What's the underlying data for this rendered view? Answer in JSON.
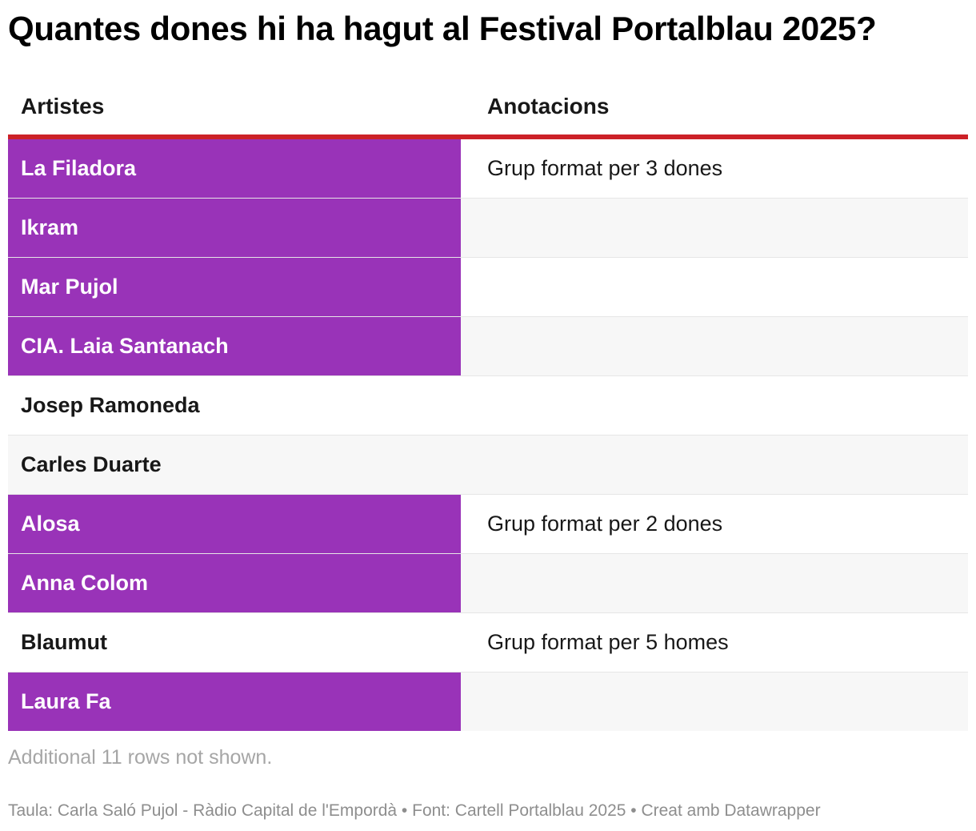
{
  "chart_data": {
    "type": "table",
    "title": "Quantes dones hi ha hagut al Festival Portalblau 2025?",
    "columns": [
      "Artistes",
      "Anotacions"
    ],
    "highlight_color": "#9933b8",
    "header_rule_color": "#cc2127",
    "rows": [
      {
        "artist": "La Filadora",
        "note": "Grup format per 3 dones",
        "highlight": true
      },
      {
        "artist": "Ikram",
        "note": "",
        "highlight": true
      },
      {
        "artist": "Mar Pujol",
        "note": "",
        "highlight": true
      },
      {
        "artist": "CIA. Laia Santanach",
        "note": "",
        "highlight": true
      },
      {
        "artist": "Josep Ramoneda",
        "note": "",
        "highlight": false
      },
      {
        "artist": "Carles Duarte",
        "note": "",
        "highlight": false
      },
      {
        "artist": "Alosa",
        "note": "Grup format per 2 dones",
        "highlight": true
      },
      {
        "artist": "Anna Colom",
        "note": "",
        "highlight": true
      },
      {
        "artist": "Blaumut",
        "note": "Grup format per 5 homes",
        "highlight": false
      },
      {
        "artist": "Laura Fa",
        "note": "",
        "highlight": true
      }
    ],
    "more_rows_text": "Additional 11 rows not shown.",
    "footer": "Taula: Carla Saló Pujol - Ràdio Capital de l'Empordà • Font: Cartell Portalblau 2025 • Creat amb Datawrapper"
  }
}
